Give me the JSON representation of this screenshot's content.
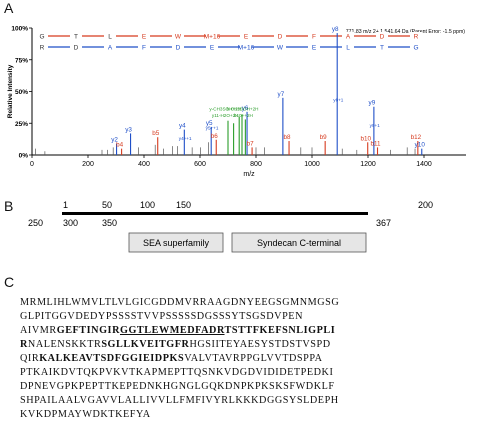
{
  "panels": {
    "a": "A",
    "b": "B",
    "c": "C"
  },
  "chart_data": {
    "type": "bar",
    "xlabel": "m/z",
    "ylabel": "Relative Intensity",
    "xlim": [
      0,
      1550
    ],
    "ylim": [
      0,
      100
    ],
    "xticks": [
      0,
      200,
      400,
      600,
      800,
      1000,
      1200,
      1400
    ],
    "yticks": [
      0,
      25,
      50,
      75,
      100
    ],
    "ytick_labels": [
      "0%",
      "25%",
      "50%",
      "75%",
      "100%"
    ],
    "header_text": "771.83 m/z 2+ 1,541.64 Da  (Parent Error: -1.5 ppm)",
    "colors": {
      "y": "#1f4fc8",
      "b": "#d63a1e",
      "green": "#2a9d2a",
      "noise": "#555555"
    },
    "peaks": [
      {
        "x": 12,
        "y": 5,
        "series": "noise"
      },
      {
        "x": 46,
        "y": 3,
        "series": "noise"
      },
      {
        "x": 250,
        "y": 4,
        "series": "noise"
      },
      {
        "x": 270,
        "y": 4,
        "series": "noise"
      },
      {
        "x": 290,
        "y": 6,
        "series": "noise"
      },
      {
        "x": 302,
        "y": 9,
        "series": "y",
        "label": "y2"
      },
      {
        "x": 320,
        "y": 5,
        "series": "b",
        "label": "b4"
      },
      {
        "x": 352,
        "y": 17,
        "series": "y",
        "label": "y3"
      },
      {
        "x": 380,
        "y": 6,
        "series": "noise"
      },
      {
        "x": 440,
        "y": 8,
        "series": "noise"
      },
      {
        "x": 449,
        "y": 14,
        "series": "b",
        "label": "b5"
      },
      {
        "x": 470,
        "y": 5,
        "series": "noise"
      },
      {
        "x": 502,
        "y": 7,
        "series": "noise"
      },
      {
        "x": 520,
        "y": 7,
        "series": "noise"
      },
      {
        "x": 544,
        "y": 20,
        "series": "y",
        "label": "y4"
      },
      {
        "x": 572,
        "y": 6,
        "series": "noise"
      },
      {
        "x": 602,
        "y": 6,
        "series": "noise"
      },
      {
        "x": 630,
        "y": 10,
        "series": "noise"
      },
      {
        "x": 640,
        "y": 22,
        "series": "y",
        "label": "y5"
      },
      {
        "x": 658,
        "y": 12,
        "series": "b",
        "label": "b6"
      },
      {
        "x": 700,
        "y": 27,
        "series": "green"
      },
      {
        "x": 720,
        "y": 25,
        "series": "green"
      },
      {
        "x": 740,
        "y": 30,
        "series": "green"
      },
      {
        "x": 750,
        "y": 32,
        "series": "green"
      },
      {
        "x": 762,
        "y": 28,
        "series": "green"
      },
      {
        "x": 768,
        "y": 34,
        "series": "y",
        "label": "y6"
      },
      {
        "x": 786,
        "y": 6,
        "series": "b",
        "label": "b7"
      },
      {
        "x": 800,
        "y": 6,
        "series": "noise"
      },
      {
        "x": 830,
        "y": 6,
        "series": "noise"
      },
      {
        "x": 896,
        "y": 45,
        "series": "y",
        "label": "y7"
      },
      {
        "x": 918,
        "y": 11,
        "series": "b",
        "label": "b8"
      },
      {
        "x": 960,
        "y": 6,
        "series": "noise"
      },
      {
        "x": 1000,
        "y": 6,
        "series": "noise"
      },
      {
        "x": 1047,
        "y": 11,
        "series": "b",
        "label": "b9"
      },
      {
        "x": 1090,
        "y": 96,
        "series": "y",
        "label": "y8"
      },
      {
        "x": 1108,
        "y": 5,
        "series": "noise"
      },
      {
        "x": 1160,
        "y": 4,
        "series": "noise"
      },
      {
        "x": 1199,
        "y": 10,
        "series": "b",
        "label": "b10"
      },
      {
        "x": 1221,
        "y": 38,
        "series": "y",
        "label": "y9"
      },
      {
        "x": 1234,
        "y": 6,
        "series": "b",
        "label": "b11"
      },
      {
        "x": 1280,
        "y": 4,
        "series": "noise"
      },
      {
        "x": 1340,
        "y": 6,
        "series": "noise"
      },
      {
        "x": 1368,
        "y": 5,
        "series": "noise"
      },
      {
        "x": 1378,
        "y": 11,
        "series": "b",
        "label": "b12"
      },
      {
        "x": 1392,
        "y": 5,
        "series": "y",
        "label": "y10"
      }
    ],
    "annotations": [
      {
        "text": "y8+1",
        "x": 1094,
        "y": 42,
        "color": "#1f4fc8"
      },
      {
        "text": "y9+1",
        "x": 1224,
        "y": 22,
        "color": "#1f4fc8"
      },
      {
        "text": "y4++1",
        "x": 547,
        "y": 12,
        "color": "#1f4fc8"
      },
      {
        "text": "y5++1",
        "x": 643,
        "y": 20,
        "color": "#1f4fc8"
      },
      {
        "text": "y-CH3SOH+2H",
        "x": 690,
        "y": 35,
        "color": "#2a9d2a"
      },
      {
        "text": "b-CH3SOH+2H",
        "x": 752,
        "y": 35,
        "color": "#2a9d2a"
      },
      {
        "text": "y11-H2O+2H",
        "x": 690,
        "y": 30,
        "color": "#2a9d2a"
      },
      {
        "text": "b10++2H",
        "x": 755,
        "y": 30,
        "color": "#2a9d2a"
      }
    ],
    "sequence_top": {
      "color": "#d63a1e",
      "residues": [
        "G",
        "T",
        "L",
        "E",
        "W",
        "M+16",
        "E",
        "D",
        "F",
        "A",
        "D",
        "R"
      ]
    },
    "sequence_bottom": {
      "color": "#1f4fc8",
      "residues": [
        "R",
        "D",
        "A",
        "F",
        "D",
        "E",
        "M+16",
        "W",
        "E",
        "L",
        "T",
        "G"
      ]
    }
  },
  "domain_map": {
    "top_numbers": [
      "1",
      "50",
      "100",
      "150",
      "200"
    ],
    "bottom_numbers": [
      "250",
      "300",
      "350",
      "367"
    ],
    "domains": [
      {
        "label": "SEA superfamily"
      },
      {
        "label": "Syndecan C-terminal"
      }
    ]
  },
  "sequence_lines": [
    [
      {
        "text": "MRMLIHLWMVLTLVLGICGDDMVRRAAGDNYEEGSGMNMGSG"
      }
    ],
    [
      {
        "text": "GLPITGGVDEDYPSSSSTVVPSSSSSDGSSSYTSGSDVPEN"
      }
    ],
    [
      {
        "text": "AIVMR"
      },
      {
        "text": "GEFTINGIR",
        "bold": true
      },
      {
        "text": "GGTLEWMEDFADR",
        "bold": true,
        "underline": true
      },
      {
        "text": "TSTTFKEFSNLIGPLI",
        "bold": true
      }
    ],
    [
      {
        "text": "R",
        "bold": true
      },
      {
        "text": "NALENSKKTR"
      },
      {
        "text": "SGLLKVEITGFR",
        "bold": true
      },
      {
        "text": "HGSIITEYAESYSTDSTVSPD"
      }
    ],
    [
      {
        "text": "QIR"
      },
      {
        "text": "KALKEAVTSDFGGIEIDPKS",
        "bold": true
      },
      {
        "text": "VALVTAVRPPGLVVTDSPPA"
      }
    ],
    [
      {
        "text": "PTKAIKDVTQKPVKVTKAPMEPTTQSNKVDGDVIDIDETPEDKI"
      }
    ],
    [
      {
        "text": "DPNEVGPKPEPTTKEPEDNKHGNGLGQKDNPKPKSKSFWDKLF"
      }
    ],
    [
      {
        "text": "SHPAILAALVGAVVLALLIVVLLFMFIVYRLKKKDGGSYSLDEPH"
      }
    ],
    [
      {
        "text": "KVKDPMAYWDKTKEFYA"
      }
    ]
  ]
}
